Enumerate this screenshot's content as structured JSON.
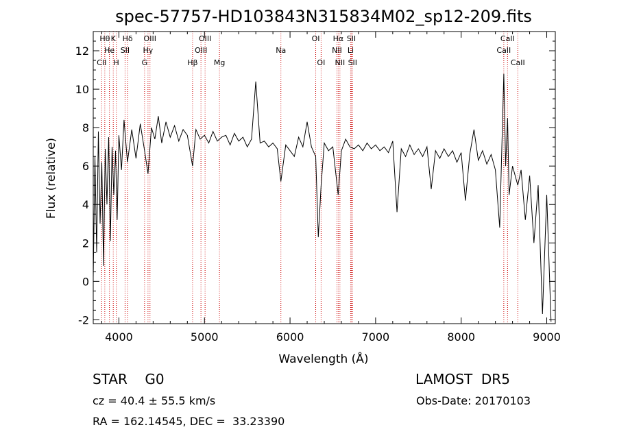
{
  "chart_data": {
    "type": "line",
    "title": "spec-57757-HD103843N315834M02_sp12-209.fits",
    "xlabel": "Wavelength (Å)",
    "ylabel": "Flux (relative)",
    "xlim": [
      3700,
      9100
    ],
    "ylim": [
      -2.2,
      13.0
    ],
    "x_ticks": [
      "4000",
      "5000",
      "6000",
      "7000",
      "8000",
      "9000"
    ],
    "y_ticks": [
      "-2",
      "0",
      "2",
      "4",
      "6",
      "8",
      "10",
      "12"
    ],
    "x_tick_values": [
      4000,
      5000,
      6000,
      7000,
      8000,
      9000
    ],
    "y_tick_values": [
      -2,
      0,
      2,
      4,
      6,
      8,
      10,
      12
    ],
    "line_color": "#000000",
    "marker_color": "#cc0000",
    "spectrum": {
      "name": "",
      "x": [
        3700,
        3720,
        3740,
        3760,
        3780,
        3800,
        3820,
        3840,
        3860,
        3880,
        3900,
        3920,
        3940,
        3960,
        3980,
        4000,
        4030,
        4060,
        4100,
        4150,
        4200,
        4250,
        4300,
        4340,
        4380,
        4420,
        4460,
        4500,
        4550,
        4600,
        4650,
        4700,
        4750,
        4800,
        4861,
        4900,
        4950,
        5000,
        5050,
        5100,
        5150,
        5200,
        5250,
        5300,
        5350,
        5400,
        5450,
        5500,
        5550,
        5600,
        5650,
        5700,
        5750,
        5800,
        5850,
        5893,
        5950,
        6000,
        6050,
        6100,
        6150,
        6200,
        6250,
        6300,
        6330,
        6363,
        6400,
        6450,
        6500,
        6563,
        6600,
        6650,
        6700,
        6750,
        6800,
        6850,
        6900,
        6950,
        7000,
        7050,
        7100,
        7150,
        7200,
        7250,
        7300,
        7350,
        7400,
        7450,
        7500,
        7550,
        7600,
        7650,
        7700,
        7750,
        7800,
        7850,
        7900,
        7950,
        8000,
        8050,
        8100,
        8150,
        8200,
        8250,
        8300,
        8350,
        8400,
        8450,
        8498,
        8520,
        8542,
        8560,
        8600,
        8662,
        8700,
        8750,
        8800,
        8850,
        8900,
        8950,
        9000,
        9050
      ],
      "y": [
        0.2,
        6.5,
        1.5,
        7.8,
        3.0,
        6.2,
        0.8,
        6.9,
        4.0,
        7.5,
        2.1,
        7.0,
        4.5,
        6.8,
        3.2,
        7.6,
        5.8,
        8.4,
        6.2,
        7.9,
        6.4,
        8.2,
        6.8,
        5.6,
        8.0,
        7.4,
        8.6,
        7.2,
        8.3,
        7.5,
        8.1,
        7.3,
        7.9,
        7.6,
        6.0,
        7.9,
        7.4,
        7.6,
        7.2,
        7.8,
        7.3,
        7.5,
        7.6,
        7.1,
        7.7,
        7.3,
        7.5,
        7.0,
        7.4,
        10.4,
        7.2,
        7.3,
        7.0,
        7.2,
        6.9,
        5.2,
        7.1,
        6.8,
        6.5,
        7.5,
        7.0,
        8.3,
        7.0,
        6.5,
        2.3,
        5.0,
        7.2,
        6.8,
        7.0,
        4.5,
        6.8,
        7.4,
        7.0,
        6.9,
        7.1,
        6.8,
        7.2,
        6.9,
        7.1,
        6.8,
        7.0,
        6.7,
        7.3,
        3.6,
        6.9,
        6.5,
        7.1,
        6.6,
        6.9,
        6.5,
        7.0,
        4.8,
        6.8,
        6.4,
        6.9,
        6.5,
        6.8,
        6.2,
        6.7,
        4.2,
        6.6,
        7.9,
        6.3,
        6.8,
        6.1,
        6.6,
        5.8,
        2.8,
        10.8,
        6.0,
        8.5,
        4.5,
        6.0,
        5.0,
        5.8,
        3.2,
        5.5,
        2.0,
        5.0,
        -1.7,
        4.5,
        -2.1
      ]
    },
    "lines": [
      {
        "w": 3798,
        "label": "CII",
        "row": 3
      },
      {
        "w": 3835,
        "label": "Hθ",
        "row": 1
      },
      {
        "w": 3889,
        "label": "He",
        "row": 2
      },
      {
        "w": 3934,
        "label": "K",
        "row": 1
      },
      {
        "w": 3970,
        "label": "H",
        "row": 3
      },
      {
        "w": 4072,
        "label": "SII",
        "row": 2
      },
      {
        "w": 4102,
        "label": "Hδ",
        "row": 1
      },
      {
        "w": 4300,
        "label": "G",
        "row": 3
      },
      {
        "w": 4340,
        "label": "Hγ",
        "row": 2
      },
      {
        "w": 4363,
        "label": "OIII",
        "row": 1
      },
      {
        "w": 4861,
        "label": "Hβ",
        "row": 3
      },
      {
        "w": 4959,
        "label": "OIII",
        "row": 2
      },
      {
        "w": 5007,
        "label": "OIII",
        "row": 1
      },
      {
        "w": 5175,
        "label": "Mg",
        "row": 3
      },
      {
        "w": 5893,
        "label": "Na",
        "row": 2
      },
      {
        "w": 6300,
        "label": "OI",
        "row": 1
      },
      {
        "w": 6363,
        "label": "OI",
        "row": 3
      },
      {
        "w": 6548,
        "label": "NII",
        "row": 2
      },
      {
        "w": 6563,
        "label": "Hα",
        "row": 1
      },
      {
        "w": 6583,
        "label": "NII",
        "row": 3
      },
      {
        "w": 6708,
        "label": "Li",
        "row": 2
      },
      {
        "w": 6716,
        "label": "SII",
        "row": 1
      },
      {
        "w": 6731,
        "label": "SII",
        "row": 3
      },
      {
        "w": 8498,
        "label": "CaII",
        "row": 2
      },
      {
        "w": 8542,
        "label": "CaII",
        "row": 1
      },
      {
        "w": 8662,
        "label": "CaII",
        "row": 3
      }
    ]
  },
  "footer": {
    "object": "STAR    G0",
    "survey": "LAMOST  DR5",
    "cz": "cz = 40.4 ± 55.5 km/s",
    "obs_date": "Obs-Date: 20170103",
    "radec": "RA = 162.14545, DEC =  33.23390"
  }
}
